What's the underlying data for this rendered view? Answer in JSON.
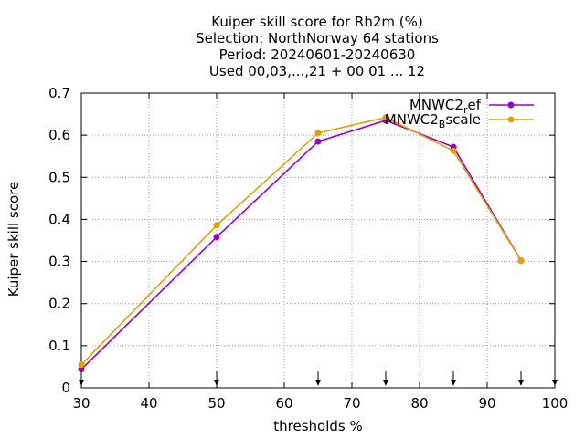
{
  "chart_data": {
    "type": "line",
    "title_lines": [
      "Kuiper skill score  for Rh2m (%)",
      "Selection: NorthNorway      64 stations",
      "Period: 20240601-20240630",
      "Used 00,03,...,21 + 00 01 ... 12"
    ],
    "xlabel": "thresholds %",
    "ylabel": "Kuiper skill score",
    "xlim": [
      30,
      100
    ],
    "ylim": [
      0,
      0.7
    ],
    "xticks": [
      30,
      40,
      50,
      60,
      70,
      80,
      90,
      100
    ],
    "yticks": [
      0,
      0.1,
      0.2,
      0.3,
      0.4,
      0.5,
      0.6,
      0.7
    ],
    "ytick_labels": [
      "0",
      "0.1",
      "0.2",
      "0.3",
      "0.4",
      "0.5",
      "0.6",
      "0.7"
    ],
    "grid": true,
    "legend_position": "top-right",
    "series": [
      {
        "name_main": "MNWC2",
        "name_sub": "r",
        "name_rest": "ef",
        "color": "#9400d3",
        "x": [
          30,
          50,
          65,
          75,
          85,
          95
        ],
        "y": [
          0.044,
          0.358,
          0.585,
          0.635,
          0.572,
          0.302
        ]
      },
      {
        "name_main": "MNWC2",
        "name_sub": "B",
        "name_rest": "scale",
        "color": "#e69f00",
        "x": [
          30,
          50,
          65,
          75,
          85,
          95
        ],
        "y": [
          0.055,
          0.386,
          0.605,
          0.642,
          0.563,
          0.302
        ]
      }
    ],
    "threshold_arrows": [
      30,
      50,
      65,
      75,
      85,
      95,
      100
    ]
  }
}
